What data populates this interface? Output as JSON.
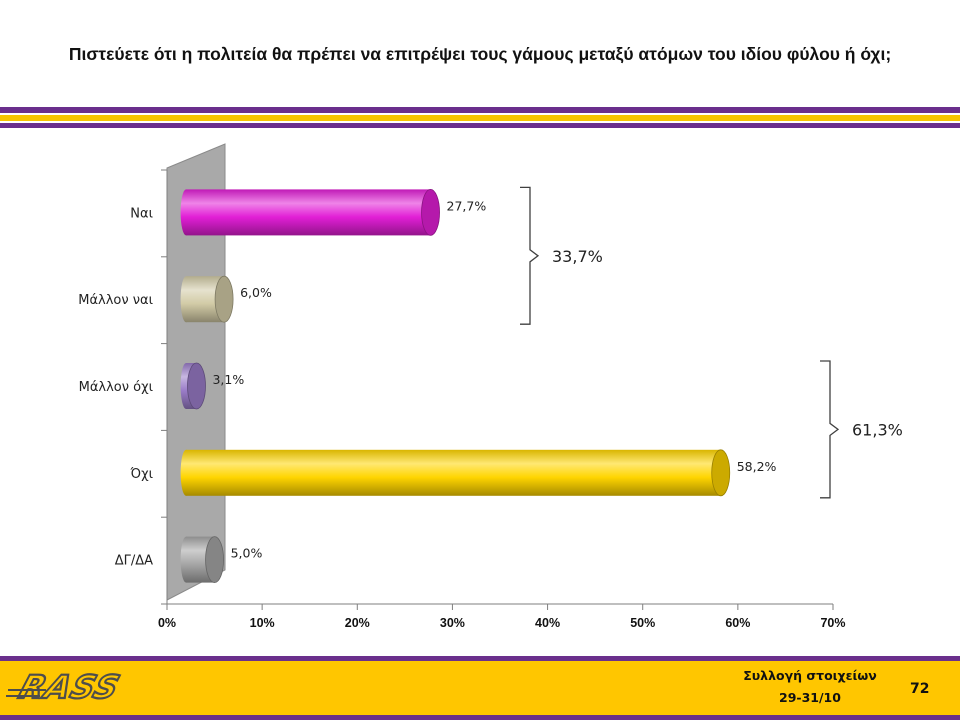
{
  "header": {
    "title": "Πιστεύετε ότι η πολιτεία θα πρέπει να επιτρέψει τους γάμους μεταξύ ατόμων του ιδίου φύλου ή όχι;"
  },
  "chart_data": {
    "type": "bar",
    "orientation": "horizontal",
    "categories": [
      "Ναι",
      "Μάλλον ναι",
      "Μάλλον όχι",
      "Όχι",
      "ΔΓ/ΔΑ"
    ],
    "values": [
      27.7,
      6.0,
      3.1,
      58.2,
      5.0
    ],
    "data_labels": [
      "27,7%",
      "6,0%",
      "3,1%",
      "58,2%",
      "5,0%"
    ],
    "colors": [
      "#e21fd6",
      "#d2cba6",
      "#9a7cc8",
      "#ffd500",
      "#a6a6a6"
    ],
    "xlim": [
      0,
      70
    ],
    "x_ticks": [
      "0%",
      "10%",
      "20%",
      "30%",
      "40%",
      "50%",
      "60%",
      "70%"
    ],
    "grid": false,
    "annotations": [
      {
        "label": "33,7%",
        "from": 0,
        "to": 1
      },
      {
        "label": "61,3%",
        "from": 2,
        "to": 3
      }
    ]
  },
  "footer": {
    "line1": "Συλλογή στοιχείων",
    "line2": "29-31/10",
    "page_number": "72",
    "logo_text": "RASS"
  }
}
